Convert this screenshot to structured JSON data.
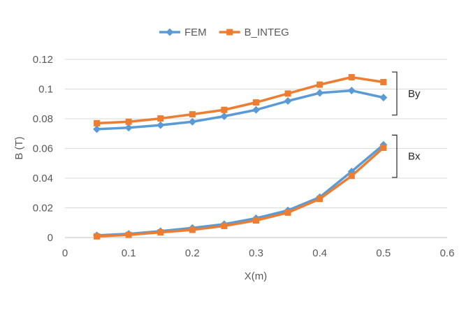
{
  "chart_data": {
    "type": "line",
    "title": "",
    "xlabel": "X(m)",
    "ylabel": "B (T)",
    "xlim": [
      0,
      0.6
    ],
    "ylim": [
      0,
      0.12
    ],
    "xticks": [
      0,
      0.1,
      0.2,
      0.3,
      0.4,
      0.5,
      0.6
    ],
    "xtick_labels": [
      "0",
      "0.1",
      "0.2",
      "0.3",
      "0.4",
      "0.5",
      "0.6"
    ],
    "yticks": [
      0,
      0.02,
      0.04,
      0.06,
      0.08,
      0.1,
      0.12
    ],
    "ytick_labels": [
      "0",
      "0.02",
      "0.04",
      "0.06",
      "0.08",
      "0.1",
      "0.12"
    ],
    "grid": "horizontal",
    "legend_position": "top-center",
    "legend": [
      {
        "name": "FEM",
        "color": "#5B9BD5",
        "marker": "diamond"
      },
      {
        "name": "B_INTEG",
        "color": "#ED7D31",
        "marker": "square"
      }
    ],
    "x": [
      0.05,
      0.1,
      0.15,
      0.2,
      0.25,
      0.3,
      0.35,
      0.4,
      0.45,
      0.5
    ],
    "series": [
      {
        "name": "FEM",
        "group": "By",
        "color": "#5B9BD5",
        "marker": "diamond",
        "values": [
          0.073,
          0.074,
          0.0757,
          0.078,
          0.0817,
          0.086,
          0.092,
          0.0974,
          0.099,
          0.0943
        ]
      },
      {
        "name": "B_INTEG",
        "group": "By",
        "color": "#ED7D31",
        "marker": "square",
        "values": [
          0.077,
          0.078,
          0.0802,
          0.083,
          0.086,
          0.091,
          0.097,
          0.103,
          0.108,
          0.1047
        ]
      },
      {
        "name": "FEM",
        "group": "Bx",
        "color": "#5B9BD5",
        "marker": "diamond",
        "values": [
          0.0015,
          0.0025,
          0.0043,
          0.0065,
          0.009,
          0.013,
          0.0183,
          0.0272,
          0.0445,
          0.0625
        ]
      },
      {
        "name": "B_INTEG",
        "group": "Bx",
        "color": "#ED7D31",
        "marker": "square",
        "values": [
          0.0008,
          0.0018,
          0.0035,
          0.0052,
          0.0078,
          0.0115,
          0.0168,
          0.026,
          0.0415,
          0.0605
        ]
      }
    ],
    "annotations": [
      {
        "text": "By",
        "yrange": [
          0.0825,
          0.1115
        ]
      },
      {
        "text": "Bx",
        "yrange": [
          0.0405,
          0.069
        ]
      }
    ]
  }
}
